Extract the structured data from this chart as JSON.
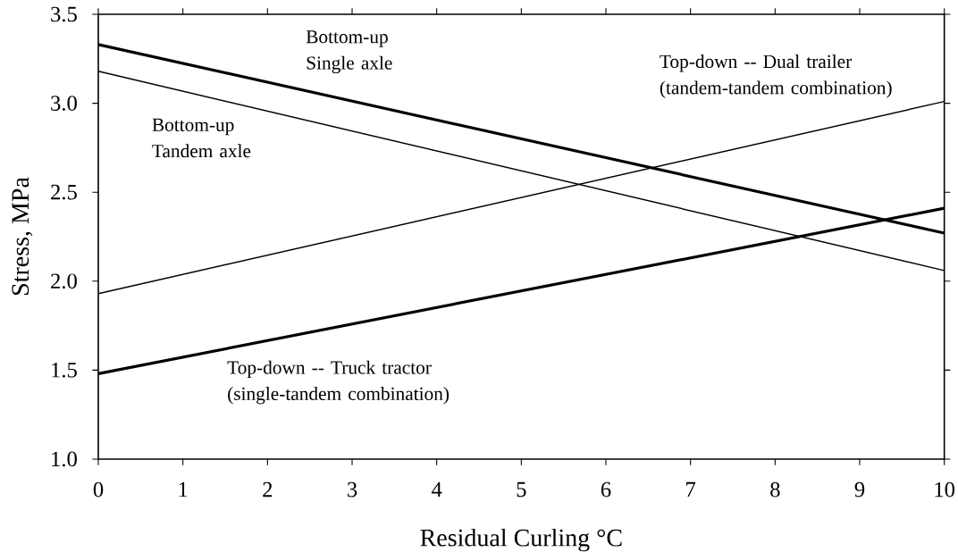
{
  "chart_data": {
    "type": "line",
    "xlabel": "Residual Curling °C",
    "ylabel": "Stress, MPa",
    "x": [
      0,
      10
    ],
    "series": [
      {
        "name": "Bottom-up Single axle",
        "color": "#000000",
        "values": [
          3.33,
          2.27
        ]
      },
      {
        "name": "Bottom-up Tandem axle",
        "color": "#000000",
        "values": [
          3.18,
          2.06
        ]
      },
      {
        "name": "Top-down -- Dual trailer (tandem-tandem combination)",
        "color": "#000000",
        "values": [
          1.93,
          3.01
        ]
      },
      {
        "name": "Top-down -- Truck tractor (single-tandem combination)",
        "color": "#000000",
        "values": [
          1.48,
          2.41
        ]
      }
    ],
    "xlim": [
      0,
      10
    ],
    "ylim": [
      1.0,
      3.5
    ],
    "xticks": [
      0,
      1,
      2,
      3,
      4,
      5,
      6,
      7,
      8,
      9,
      10
    ],
    "yticks": [
      {
        "value": 1.0,
        "label": "1.0"
      },
      {
        "value": 1.5,
        "label": "1.5"
      },
      {
        "value": 2.0,
        "label": "2.0"
      },
      {
        "value": 2.5,
        "label": "2.5"
      },
      {
        "value": 3.0,
        "label": "3.0"
      },
      {
        "value": 3.5,
        "label": "3.5"
      }
    ],
    "grid": false,
    "marker": "none",
    "line_style": "solid"
  }
}
